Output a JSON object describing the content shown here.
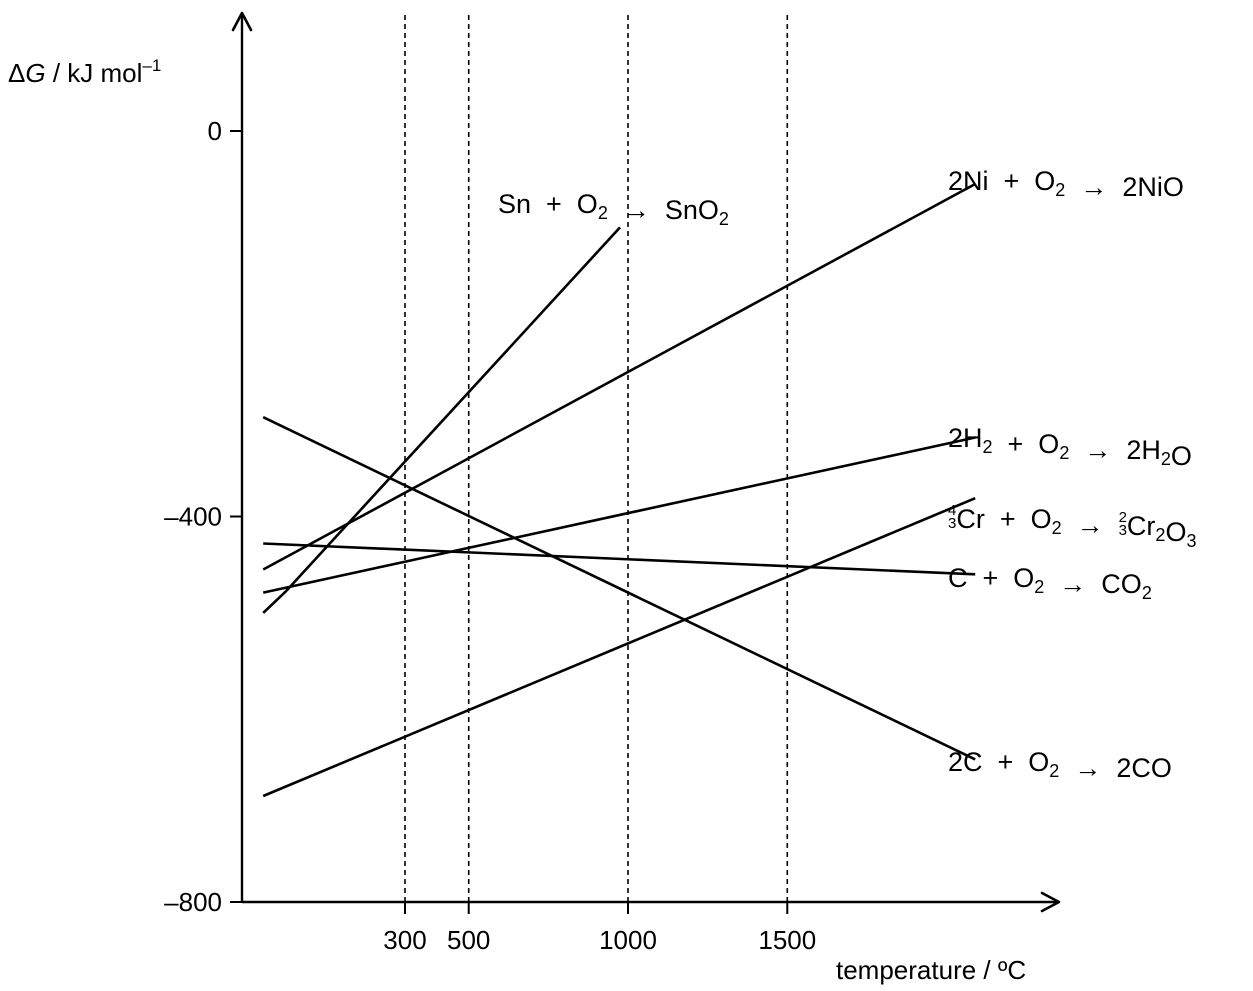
{
  "chart_data": {
    "type": "line",
    "title": "",
    "ylabel": {
      "delta": "Δ",
      "var": "G",
      "unit": " / kJ mol",
      "sup": "–1"
    },
    "xlabel": "temperature / ºC",
    "ylim": [
      -800,
      125
    ],
    "xlim": [
      -425,
      2210
    ],
    "yticks": [
      {
        "value": 0,
        "label": "0"
      },
      {
        "value": -400,
        "label": "–400"
      },
      {
        "value": -800,
        "label": "–800"
      }
    ],
    "xticks": [
      {
        "value": 300,
        "label": "300"
      },
      {
        "value": 500,
        "label": "500"
      },
      {
        "value": 1000,
        "label": "1000"
      },
      {
        "value": 1500,
        "label": "1500"
      }
    ],
    "gridlines_x": [
      300,
      500,
      1000,
      1500
    ],
    "series": [
      {
        "name": "Sn + O2 → SnO2",
        "points": [
          [
            -145,
            -500
          ],
          [
            -75,
            -478
          ],
          [
            975,
            -100
          ]
        ]
      },
      {
        "name": "2Ni + O2 → 2NiO",
        "points": [
          [
            -145,
            -455
          ],
          [
            2090,
            -55
          ]
        ]
      },
      {
        "name": "2H2 + O2 → 2H2O",
        "points": [
          [
            -145,
            -479
          ],
          [
            2090,
            -318
          ]
        ]
      },
      {
        "name": "4/3 Cr + O2 → 2/3 Cr2O3",
        "points": [
          [
            -145,
            -690
          ],
          [
            2090,
            -381
          ]
        ]
      },
      {
        "name": "C + O2 → CO2",
        "points": [
          [
            -145,
            -428
          ],
          [
            2090,
            -460
          ]
        ]
      },
      {
        "name": "2C + O2 → 2CO",
        "points": [
          [
            -145,
            -297
          ],
          [
            2090,
            -652
          ]
        ]
      }
    ],
    "labels": [
      {
        "key": "sn",
        "parts": [
          {
            "t": "Sn  +  O"
          },
          {
            "t": "2",
            "sub": true
          },
          {
            "t": "  →  SnO"
          },
          {
            "t": "2",
            "sub": true
          }
        ]
      },
      {
        "key": "ni",
        "parts": [
          {
            "t": "2Ni  +  O"
          },
          {
            "t": "2",
            "sub": true
          },
          {
            "t": "  →  2NiO"
          }
        ]
      },
      {
        "key": "h2",
        "parts": [
          {
            "t": "2H"
          },
          {
            "t": "2",
            "sub": true
          },
          {
            "t": "  +  O"
          },
          {
            "t": "2",
            "sub": true
          },
          {
            "t": "  →  2H"
          },
          {
            "t": "2",
            "sub": true
          },
          {
            "t": "O"
          }
        ]
      },
      {
        "key": "cr",
        "parts": [
          {
            "frac": [
              "4",
              "3"
            ]
          },
          {
            "t": "Cr  +  O"
          },
          {
            "t": "2",
            "sub": true
          },
          {
            "t": "  →  "
          },
          {
            "frac": [
              "2",
              "3"
            ]
          },
          {
            "t": "Cr"
          },
          {
            "t": "2",
            "sub": true
          },
          {
            "t": "O"
          },
          {
            "t": "3",
            "sub": true
          }
        ]
      },
      {
        "key": "co2",
        "parts": [
          {
            "t": "C  +  O"
          },
          {
            "t": "2",
            "sub": true
          },
          {
            "t": "  →  CO"
          },
          {
            "t": "2",
            "sub": true
          }
        ]
      },
      {
        "key": "co",
        "parts": [
          {
            "t": "2C  +  O"
          },
          {
            "t": "2",
            "sub": true
          },
          {
            "t": "  →  2CO"
          }
        ]
      }
    ]
  }
}
